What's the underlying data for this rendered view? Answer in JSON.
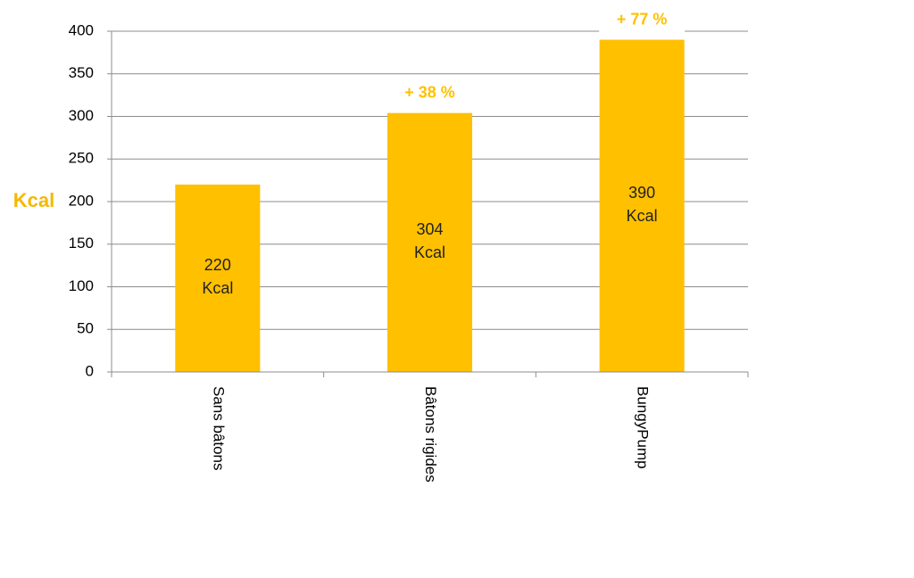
{
  "chart_data": {
    "type": "bar",
    "y_label": "Kcal",
    "categories": [
      "Sans bâtons",
      "Bâtons rigides",
      "BungyPump"
    ],
    "values": [
      220,
      304,
      390
    ],
    "value_labels": [
      "220 Kcal",
      "304 Kcal",
      "390 Kcal"
    ],
    "annotations": [
      {
        "category": "Bâtons rigides",
        "label": "+ 38 %"
      },
      {
        "category": "BungyPump",
        "label": "+ 77 %"
      }
    ],
    "color": "#FFC000",
    "ylim": [
      0,
      400
    ],
    "yticks": [
      0,
      50,
      100,
      150,
      200,
      250,
      300,
      350,
      400
    ],
    "grid": true
  }
}
